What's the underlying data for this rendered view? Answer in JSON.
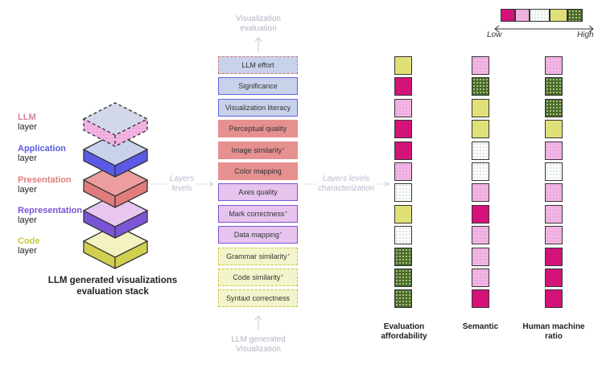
{
  "legend": {
    "low_label": "Low",
    "high_label": "High",
    "levels": [
      "low",
      "mid-low",
      "mid",
      "mid-high",
      "high"
    ]
  },
  "colors": {
    "llm": "#d6809e",
    "application": "#5a5ae6",
    "presentation": "#e07c7c",
    "representation": "#7b55d6",
    "code": "#d0d050",
    "level_low": "#d4127a",
    "level_midlow": "#f2b6e4",
    "level_mid": "#ffffff",
    "level_midhigh": "#e0e078",
    "level_high": "#4a6b2a"
  },
  "stack": {
    "layers": [
      {
        "name": "LLM",
        "word": "layer",
        "color": "#d6809e"
      },
      {
        "name": "Application",
        "word": "layer",
        "color": "#5a5ae6"
      },
      {
        "name": "Presentation",
        "word": "layer",
        "color": "#e07c7c"
      },
      {
        "name": "Representation",
        "word": "layer",
        "color": "#7b55d6"
      },
      {
        "name": "Code",
        "word": "layer",
        "color": "#d0d050"
      }
    ],
    "caption_line1": "LLM generated visualizations",
    "caption_line2": "evaluation stack"
  },
  "flow": {
    "top_label_line1": "Visualization",
    "top_label_line2": "evaluation",
    "bottom_label_line1": "LLM generated",
    "bottom_label_line2": "Visualization",
    "mid_label_line1": "Layers",
    "mid_label_line2": "levels",
    "right_label_line1": "Layers levels",
    "right_label_line2": "characterization"
  },
  "metrics": [
    {
      "label": "LLM effort",
      "star": false,
      "layer": "llm"
    },
    {
      "label": "Significance",
      "star": false,
      "layer": "application"
    },
    {
      "label": "Visualization literacy",
      "star": false,
      "layer": "application"
    },
    {
      "label": "Perceptual quality",
      "star": false,
      "layer": "presentation"
    },
    {
      "label": "Image similarity",
      "star": true,
      "layer": "presentation"
    },
    {
      "label": "Color mapping",
      "star": false,
      "layer": "presentation"
    },
    {
      "label": "Axes quality",
      "star": false,
      "layer": "representation"
    },
    {
      "label": "Mark correctness",
      "star": true,
      "layer": "representation"
    },
    {
      "label": "Data mapping",
      "star": true,
      "layer": "representation"
    },
    {
      "label": "Grammar similarity",
      "star": true,
      "layer": "code"
    },
    {
      "label": "Code similarity",
      "star": true,
      "layer": "code"
    },
    {
      "label": "Syntaxt correctness",
      "star": false,
      "layer": "code"
    }
  ],
  "star_mark": "*",
  "columns": [
    {
      "title_line1": "Evaluation",
      "title_line2": "affordability",
      "levels": [
        "mid-high",
        "low",
        "mid-low",
        "low",
        "low",
        "mid-low",
        "mid",
        "mid-high",
        "mid",
        "high",
        "high",
        "high"
      ]
    },
    {
      "title_line1": "Semantic",
      "title_line2": "",
      "levels": [
        "mid-low",
        "high",
        "mid-high",
        "mid-high",
        "mid",
        "mid",
        "mid-low",
        "low",
        "mid-low",
        "mid-low",
        "mid-low",
        "low"
      ]
    },
    {
      "title_line1": "Human machine",
      "title_line2": "ratio",
      "levels": [
        "mid-low",
        "high",
        "high",
        "mid-high",
        "mid-low",
        "mid",
        "mid-low",
        "mid-low",
        "mid-low",
        "low",
        "low",
        "low"
      ]
    }
  ]
}
